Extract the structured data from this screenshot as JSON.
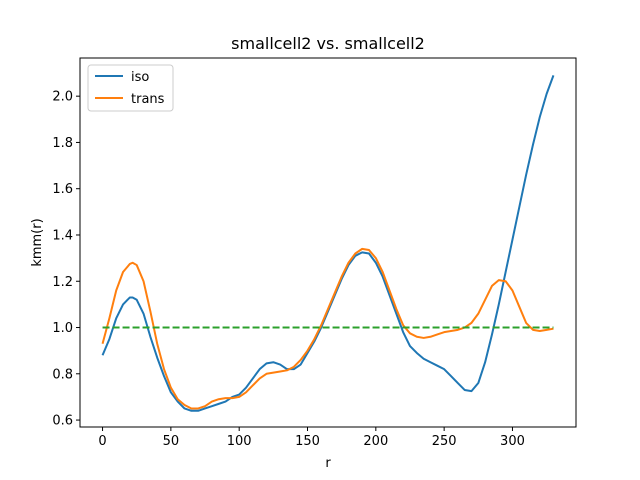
{
  "chart_data": {
    "type": "line",
    "title": "smallcell2 vs. smallcell2",
    "xlabel": "r",
    "ylabel": "kmm(r)",
    "xlim": [
      -16.5,
      346.5
    ],
    "ylim": [
      0.57,
      2.165
    ],
    "xticks": [
      0,
      50,
      100,
      150,
      200,
      250,
      300
    ],
    "yticks": [
      0.6,
      0.8,
      1.0,
      1.2,
      1.4,
      1.6,
      1.8,
      2.0
    ],
    "xtick_labels": [
      "0",
      "50",
      "100",
      "150",
      "200",
      "250",
      "300"
    ],
    "ytick_labels": [
      "0.6",
      "0.8",
      "1.0",
      "1.2",
      "1.4",
      "1.6",
      "1.8",
      "2.0"
    ],
    "grid": false,
    "legend_position": "top-left",
    "series": [
      {
        "name": "iso",
        "color": "#1f77b4",
        "style": "solid",
        "x": [
          0,
          5,
          10,
          15,
          20,
          22,
          25,
          30,
          35,
          40,
          45,
          50,
          55,
          60,
          65,
          70,
          75,
          80,
          85,
          90,
          95,
          100,
          105,
          110,
          115,
          120,
          125,
          130,
          135,
          140,
          145,
          150,
          155,
          160,
          165,
          170,
          175,
          180,
          185,
          190,
          195,
          200,
          205,
          210,
          215,
          220,
          225,
          230,
          235,
          240,
          245,
          250,
          255,
          260,
          265,
          270,
          275,
          280,
          285,
          290,
          295,
          300,
          305,
          310,
          315,
          320,
          325,
          330
        ],
        "y": [
          0.88,
          0.95,
          1.04,
          1.1,
          1.13,
          1.13,
          1.12,
          1.06,
          0.96,
          0.87,
          0.79,
          0.72,
          0.68,
          0.65,
          0.64,
          0.64,
          0.65,
          0.66,
          0.67,
          0.68,
          0.7,
          0.71,
          0.74,
          0.78,
          0.82,
          0.845,
          0.85,
          0.84,
          0.82,
          0.82,
          0.84,
          0.89,
          0.94,
          1.0,
          1.07,
          1.14,
          1.21,
          1.27,
          1.31,
          1.325,
          1.32,
          1.28,
          1.22,
          1.14,
          1.06,
          0.98,
          0.92,
          0.89,
          0.865,
          0.85,
          0.835,
          0.82,
          0.79,
          0.76,
          0.73,
          0.725,
          0.76,
          0.85,
          0.97,
          1.1,
          1.24,
          1.38,
          1.52,
          1.66,
          1.79,
          1.91,
          2.01,
          2.09
        ]
      },
      {
        "name": "trans",
        "color": "#ff7f0e",
        "style": "solid",
        "x": [
          0,
          5,
          10,
          15,
          20,
          22,
          25,
          30,
          35,
          40,
          45,
          50,
          55,
          60,
          65,
          70,
          75,
          80,
          85,
          90,
          95,
          100,
          105,
          110,
          115,
          120,
          125,
          130,
          135,
          140,
          145,
          150,
          155,
          160,
          165,
          170,
          175,
          180,
          185,
          190,
          195,
          200,
          205,
          210,
          215,
          220,
          225,
          230,
          235,
          240,
          245,
          250,
          255,
          260,
          265,
          270,
          275,
          280,
          285,
          290,
          295,
          300,
          305,
          310,
          315,
          320,
          325,
          330
        ],
        "y": [
          0.93,
          1.04,
          1.16,
          1.24,
          1.275,
          1.28,
          1.27,
          1.2,
          1.07,
          0.93,
          0.82,
          0.74,
          0.69,
          0.665,
          0.65,
          0.65,
          0.66,
          0.68,
          0.69,
          0.695,
          0.695,
          0.7,
          0.72,
          0.75,
          0.78,
          0.8,
          0.805,
          0.81,
          0.815,
          0.83,
          0.86,
          0.9,
          0.95,
          1.01,
          1.08,
          1.15,
          1.22,
          1.28,
          1.32,
          1.34,
          1.335,
          1.3,
          1.24,
          1.16,
          1.08,
          1.01,
          0.975,
          0.96,
          0.955,
          0.96,
          0.97,
          0.98,
          0.985,
          0.99,
          1.0,
          1.02,
          1.06,
          1.12,
          1.18,
          1.205,
          1.2,
          1.16,
          1.09,
          1.02,
          0.99,
          0.985,
          0.99,
          0.995
        ]
      },
      {
        "name": "",
        "color": "#2ca02c",
        "style": "dashed",
        "x": [
          0,
          330
        ],
        "y": [
          1.0,
          1.0
        ]
      }
    ]
  }
}
